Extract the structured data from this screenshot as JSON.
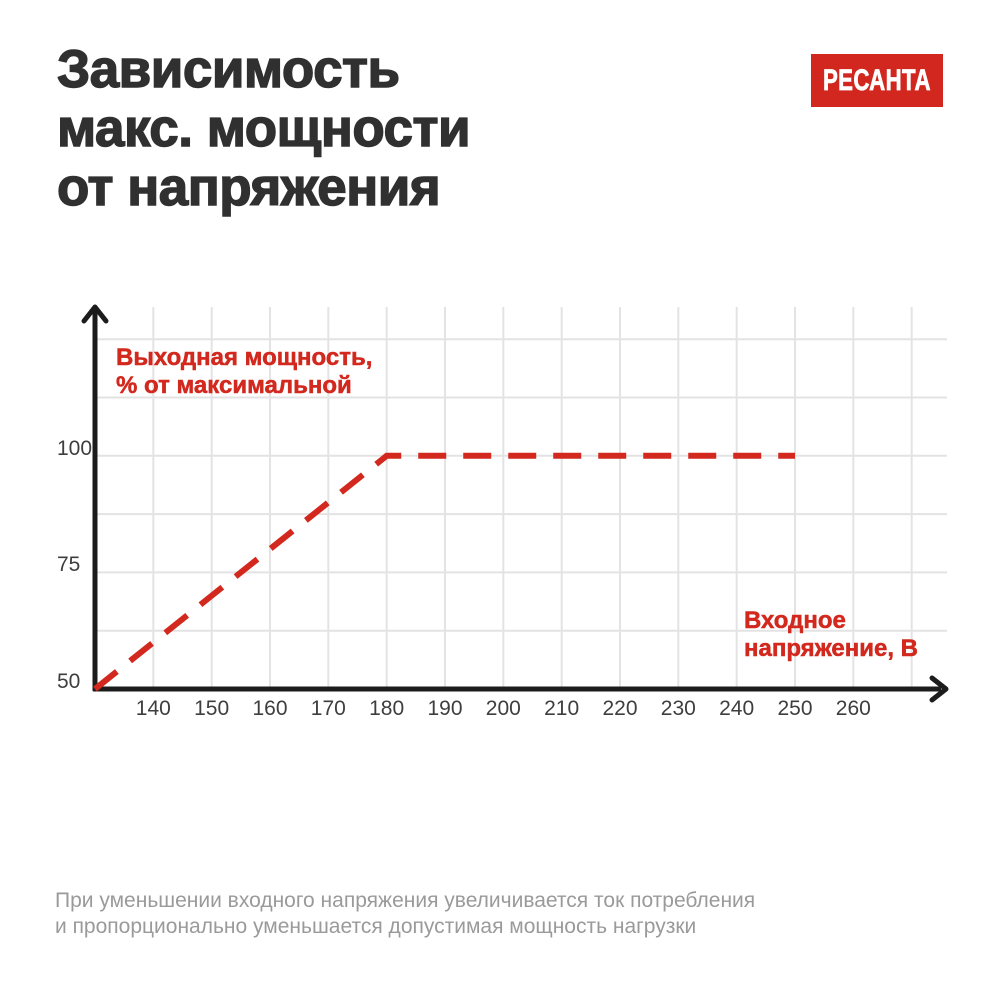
{
  "page": {
    "title_lines": [
      "Зависимость",
      "макс. мощности",
      "от напряжения"
    ],
    "logo_text": "РЕСАНТА",
    "footer_lines": [
      "При уменьшении входного напряжения увеличивается ток потребления",
      "и пропорционально уменьшается допустимая мощность нагрузки"
    ]
  },
  "colors": {
    "background": "#ffffff",
    "accent_red": "#d2281e",
    "title_text": "#303030",
    "tick_text": "#3e3e3e",
    "footer_text": "#9a9a9a",
    "grid_line": "#e3e3e3",
    "axis_line": "#1c1c1c",
    "logo_bg": "#d2271e",
    "logo_text": "#ffffff"
  },
  "chart_data": {
    "type": "line",
    "title": "Зависимость макс. мощности от напряжения",
    "xlabel": "Входное напряжение, В",
    "ylabel": "Выходная мощность, % от максимальной",
    "xlabel_lines": [
      "Входное",
      "напряжение, В"
    ],
    "ylabel_lines": [
      "Выходная мощность,",
      "% от максимальной"
    ],
    "x_ticks": [
      140,
      150,
      160,
      170,
      180,
      190,
      200,
      210,
      220,
      230,
      240,
      250,
      260
    ],
    "y_ticks": [
      100,
      75,
      50
    ],
    "xlim": [
      130,
      270
    ],
    "ylim": [
      50,
      125
    ],
    "x_grid_step": 10,
    "y_grid_step": 12.5,
    "grid": true,
    "legend_position": "none",
    "series": [
      {
        "name": "Выходная мощность, % от максимальной",
        "style": "dashed",
        "color": "#d2281e",
        "points": [
          [
            130,
            50
          ],
          [
            180,
            100
          ],
          [
            250,
            100
          ]
        ]
      }
    ]
  }
}
